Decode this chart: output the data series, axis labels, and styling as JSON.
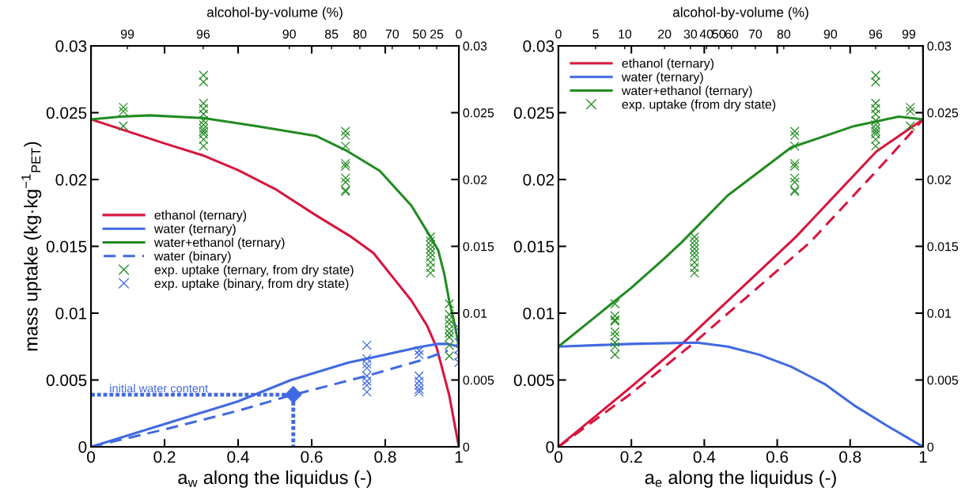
{
  "chart_data": [
    {
      "type": "line",
      "xlabel": "a$_{w}$ along the liquidus (-)",
      "ylabel": "mass uptake (kg·kg$^{−1}$$_{PET}$)",
      "xlim": [
        0,
        1
      ],
      "xticks": [
        0,
        0.2,
        0.4,
        0.6,
        0.8,
        1
      ],
      "ylim": [
        0,
        0.03
      ],
      "yticks": [
        0,
        0.005,
        0.01,
        0.015,
        0.02,
        0.025,
        0.03
      ],
      "y2lim": [
        0,
        0.03
      ],
      "y2ticks": [
        0,
        0.005,
        0.01,
        0.015,
        0.02,
        0.025,
        0.03
      ],
      "legend": "center left",
      "annotations": [
        "alcohol-by-volume (%)",
        "99",
        "96",
        "90",
        "85",
        "80",
        "70",
        "50",
        "25",
        "0",
        {
          "text": "initial water content",
          "x": 0.05,
          "y": 0.0039
        }
      ],
      "series": [
        {
          "name": "ethanol (ternary)",
          "color": "#d6163e",
          "line_style": "solid",
          "x": [
            0,
            0.1,
            0.2,
            0.305,
            0.4,
            0.5,
            0.613,
            0.708,
            0.768,
            0.871,
            0.914,
            0.94,
            0.974,
            1
          ],
          "values": [
            0.0245,
            0.0236,
            0.0227,
            0.0218,
            0.0207,
            0.0193,
            0.0173,
            0.0157,
            0.0145,
            0.01095,
            0.00905,
            0.0074,
            0.00385,
            0
          ]
        },
        {
          "name": "water (ternary)",
          "color": "#4169e1",
          "line_style": "solid",
          "x": [
            0,
            0.2,
            0.4,
            0.544,
            0.7,
            0.8,
            0.9,
            0.945,
            0.97,
            1
          ],
          "values": [
            0,
            0.0017,
            0.0034,
            0.005,
            0.0063,
            0.0069,
            0.0075,
            0.0077,
            0.0077,
            0.0075
          ]
        },
        {
          "name": "water+ethanol (ternary)",
          "color": "#228b22",
          "line_style": "solid",
          "x": [
            0,
            0.08,
            0.16,
            0.305,
            0.45,
            0.613,
            0.692,
            0.785,
            0.871,
            0.923,
            0.944,
            0.96,
            0.974,
            0.99,
            1
          ],
          "values": [
            0.0245,
            0.0247,
            0.0248,
            0.0246,
            0.024,
            0.02325,
            0.0222,
            0.02065,
            0.01805,
            0.0157,
            0.0147,
            0.013,
            0.0109,
            0.009,
            0.0075
          ]
        },
        {
          "name": "water (binary)",
          "color": "#4169e1",
          "line_style": "dashed",
          "x": [
            0,
            0.2,
            0.4,
            0.55,
            0.75,
            0.9,
            0.97
          ],
          "values": [
            0,
            0.0013,
            0.0027,
            0.0039,
            0.0053,
            0.0065,
            0.0072
          ]
        },
        {
          "name": "exp. uptake (ternary, from dry state)",
          "type": "scatter",
          "marker": "cross",
          "color": "#228b22",
          "x": [
            0.088,
            0.088,
            0.088,
            0.306,
            0.306,
            0.306,
            0.306,
            0.306,
            0.306,
            0.306,
            0.306,
            0.306,
            0.306,
            0.306,
            0.306,
            0.692,
            0.692,
            0.692,
            0.692,
            0.692,
            0.692,
            0.692,
            0.692,
            0.692,
            0.923,
            0.923,
            0.923,
            0.923,
            0.923,
            0.923,
            0.923,
            0.923,
            0.923,
            0.974,
            0.974,
            0.974,
            0.974,
            0.974,
            0.974,
            0.974,
            0.974,
            0.974
          ],
          "values": [
            0.0254,
            0.0251,
            0.024,
            0.0278,
            0.0273,
            0.0257,
            0.0253,
            0.0249,
            0.0244,
            0.0241,
            0.0238,
            0.0236,
            0.0234,
            0.023,
            0.0225,
            0.0236,
            0.0233,
            0.0225,
            0.0212,
            0.021,
            0.0201,
            0.0198,
            0.0192,
            0.0191,
            0.0157,
            0.0154,
            0.0151,
            0.0148,
            0.0145,
            0.0142,
            0.0138,
            0.0134,
            0.013,
            0.0107,
            0.0099,
            0.0095,
            0.0092,
            0.0088,
            0.0085,
            0.0082,
            0.0076,
            0.0068
          ]
        },
        {
          "name": "exp. uptake (binary, from dry state)",
          "type": "scatter",
          "marker": "cross",
          "color": "#4169e1",
          "x": [
            0.75,
            0.75,
            0.75,
            0.75,
            0.75,
            0.75,
            0.75,
            0.75,
            0.892,
            0.892,
            0.892,
            0.892,
            0.892,
            0.892,
            0.892,
            1,
            1,
            1,
            1,
            1
          ],
          "values": [
            0.0076,
            0.0066,
            0.0062,
            0.0059,
            0.0053,
            0.0049,
            0.0046,
            0.0041,
            0.0072,
            0.0069,
            0.0053,
            0.0049,
            0.0046,
            0.0043,
            0.0041,
            0.0089,
            0.0078,
            0.0073,
            0.0068,
            0.0063
          ]
        },
        {
          "color": "#4169e1",
          "line_style": "dotted",
          "x": [
            0,
            0.55,
            0.55
          ],
          "values": [
            0.0039,
            0.0039,
            0
          ]
        },
        {
          "type": "scatter",
          "marker": "diamond",
          "color": "#4169e1",
          "x": [
            0.55
          ],
          "values": [
            0.0039
          ]
        }
      ]
    },
    {
      "type": "line",
      "xlabel": "a$_{e}$ along the liquidus (-)",
      "xlim": [
        0,
        1
      ],
      "xticks": [
        0,
        0.2,
        0.4,
        0.6,
        0.8,
        1
      ],
      "ylim": [
        0,
        0.03
      ],
      "yticks": [
        0,
        0.005,
        0.01,
        0.015,
        0.02,
        0.025,
        0.03
      ],
      "y2lim": [
        0,
        0.03
      ],
      "y2ticks": [
        0,
        0.005,
        0.01,
        0.015,
        0.02,
        0.025,
        0.03
      ],
      "legend": "top left",
      "annotations": [
        "alcohol-by-volume (%)",
        "0",
        "5",
        "10",
        "20",
        "30",
        "40",
        "50",
        "60",
        "70",
        "80",
        "90",
        "96",
        "99"
      ],
      "series": [
        {
          "name": "ethanol (ternary)",
          "color": "#d6163e",
          "line_style": "solid",
          "x": [
            0,
            0.2,
            0.347,
            0.651,
            0.872,
            1
          ],
          "values": [
            0,
            0.0045,
            0.0079,
            0.0157,
            0.0221,
            0.0245
          ]
        },
        {
          "name": "water (ternary)",
          "color": "#4169e1",
          "line_style": "solid",
          "x": [
            0,
            0.2,
            0.38,
            0.464,
            0.55,
            0.638,
            0.73,
            0.811,
            0.9,
            1
          ],
          "values": [
            0.0075,
            0.0077,
            0.0078,
            0.0075,
            0.0069,
            0.006,
            0.0047,
            0.0031,
            0.0016,
            0
          ]
        },
        {
          "name": "water+ethanol (ternary)",
          "color": "#228b22",
          "line_style": "solid",
          "x": [
            0,
            0.1,
            0.2,
            0.291,
            0.338,
            0.464,
            0.638,
            0.811,
            0.933,
            1
          ],
          "values": [
            0.0075,
            0.0097,
            0.0119,
            0.0141,
            0.0153,
            0.0188,
            0.0224,
            0.024,
            0.0247,
            0.0245
          ]
        },
        {
          "color": "#d6163e",
          "line_style": "dashed",
          "x": [
            0,
            0.2,
            0.377,
            0.69,
            0.898,
            1
          ],
          "values": [
            0,
            0.004,
            0.0079,
            0.0153,
            0.0214,
            0.0245
          ]
        },
        {
          "name": "exp. uptake (from dry state)",
          "type": "scatter",
          "marker": "cross",
          "color": "#228b22",
          "x": [
            0.155,
            0.155,
            0.155,
            0.155,
            0.155,
            0.155,
            0.155,
            0.155,
            0.155,
            0.373,
            0.373,
            0.373,
            0.373,
            0.373,
            0.373,
            0.373,
            0.373,
            0.373,
            0.648,
            0.648,
            0.648,
            0.648,
            0.648,
            0.648,
            0.648,
            0.648,
            0.648,
            0.87,
            0.87,
            0.87,
            0.87,
            0.87,
            0.87,
            0.87,
            0.87,
            0.87,
            0.87,
            0.87,
            0.87,
            0.965,
            0.965,
            0.965
          ],
          "values": [
            0.0107,
            0.0098,
            0.0095,
            0.0094,
            0.0086,
            0.0083,
            0.0078,
            0.0075,
            0.0069,
            0.0157,
            0.0154,
            0.0151,
            0.0148,
            0.0145,
            0.0142,
            0.0138,
            0.0134,
            0.013,
            0.0236,
            0.0233,
            0.0225,
            0.0212,
            0.021,
            0.0201,
            0.0198,
            0.0192,
            0.0191,
            0.0278,
            0.0273,
            0.0257,
            0.0253,
            0.0249,
            0.0244,
            0.0241,
            0.0238,
            0.0236,
            0.0234,
            0.023,
            0.0225,
            0.0254,
            0.0251,
            0.024
          ]
        }
      ]
    }
  ]
}
